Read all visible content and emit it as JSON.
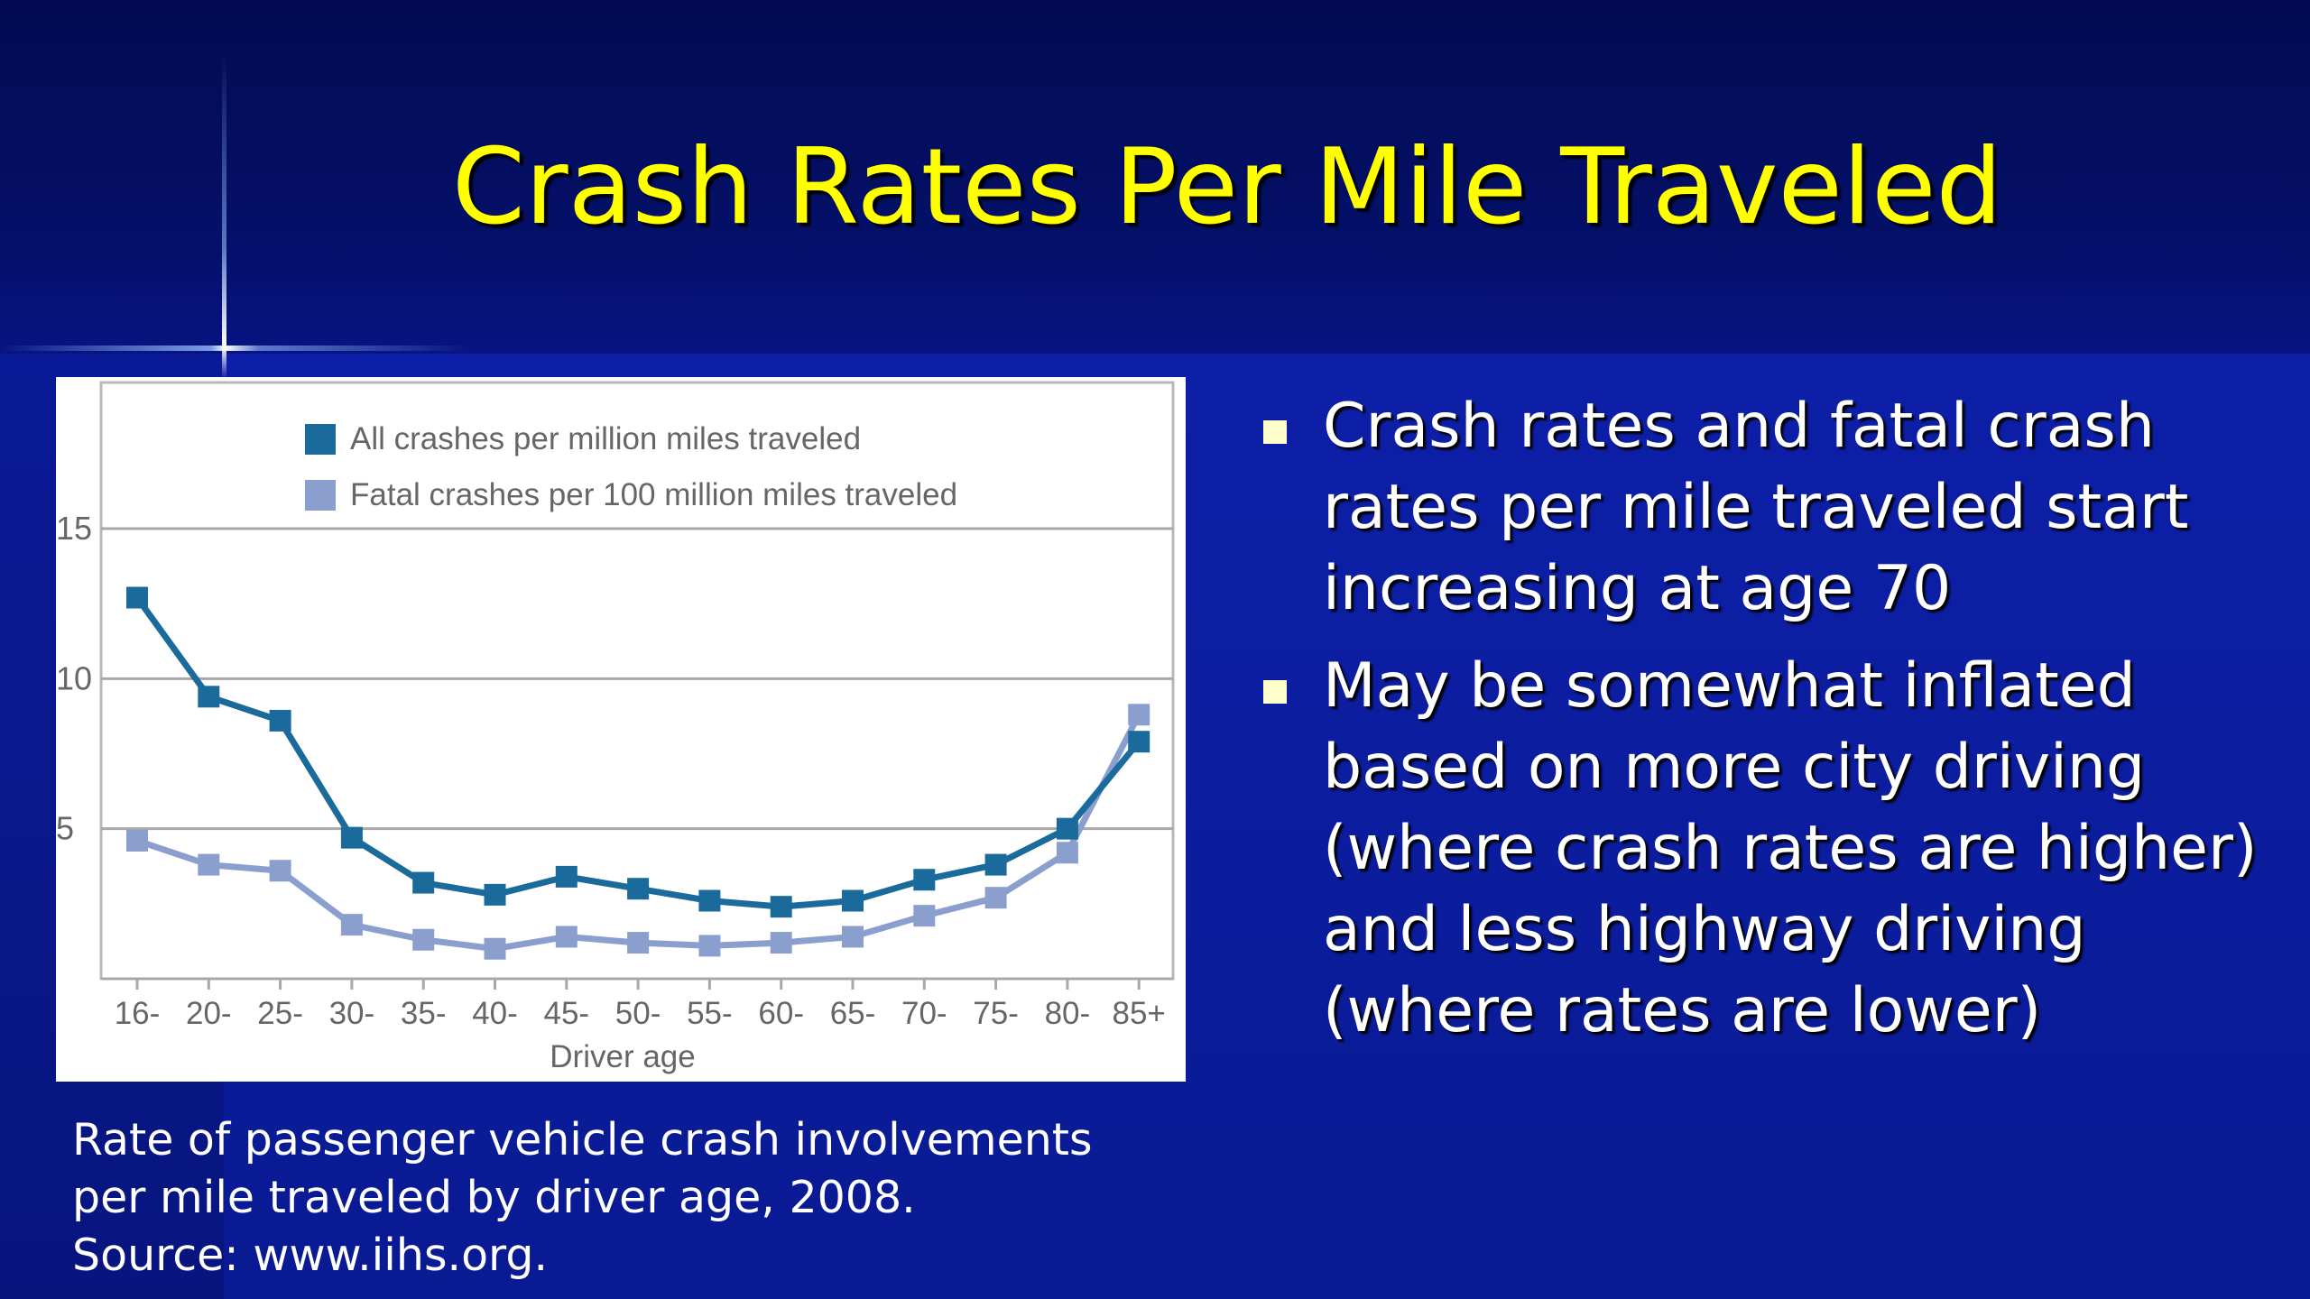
{
  "slide": {
    "title": "Crash Rates Per Mile Traveled",
    "bullets": [
      "Crash rates and fatal crash rates per mile traveled start increasing at age 70",
      "May be somewhat inflated based on more city driving (where crash rates are higher) and less highway driving (where rates are lower)"
    ],
    "caption_lines": [
      "Rate of passenger vehicle crash involvements",
      "per mile traveled by driver age, 2008.",
      "Source:  www.iihs.org."
    ]
  },
  "colors": {
    "title": "#ffff00",
    "series_all": "#1b6a9c",
    "series_fatal": "#8b9fcf",
    "bullet": "#ffffcc"
  },
  "chart_data": {
    "type": "line",
    "xlabel": "Driver age",
    "ylabel": "",
    "categories": [
      "16-",
      "20-",
      "25-",
      "30-",
      "35-",
      "40-",
      "45-",
      "50-",
      "55-",
      "60-",
      "65-",
      "70-",
      "75-",
      "80-",
      "85+"
    ],
    "ylim": [
      0,
      15
    ],
    "yticks": [
      5,
      10,
      15
    ],
    "grid": true,
    "legend_position": "top",
    "series": [
      {
        "name": "All crashes per million miles traveled",
        "color": "#1b6a9c",
        "values": [
          12.7,
          9.4,
          8.6,
          4.7,
          3.2,
          2.8,
          3.4,
          3.0,
          2.6,
          2.4,
          2.6,
          3.3,
          3.8,
          5.0,
          7.9
        ]
      },
      {
        "name": "Fatal crashes per 100 million miles traveled",
        "color": "#8b9fcf",
        "values": [
          4.6,
          3.8,
          3.6,
          1.8,
          1.3,
          1.0,
          1.4,
          1.2,
          1.1,
          1.2,
          1.4,
          2.1,
          2.7,
          4.2,
          8.8
        ]
      }
    ]
  }
}
